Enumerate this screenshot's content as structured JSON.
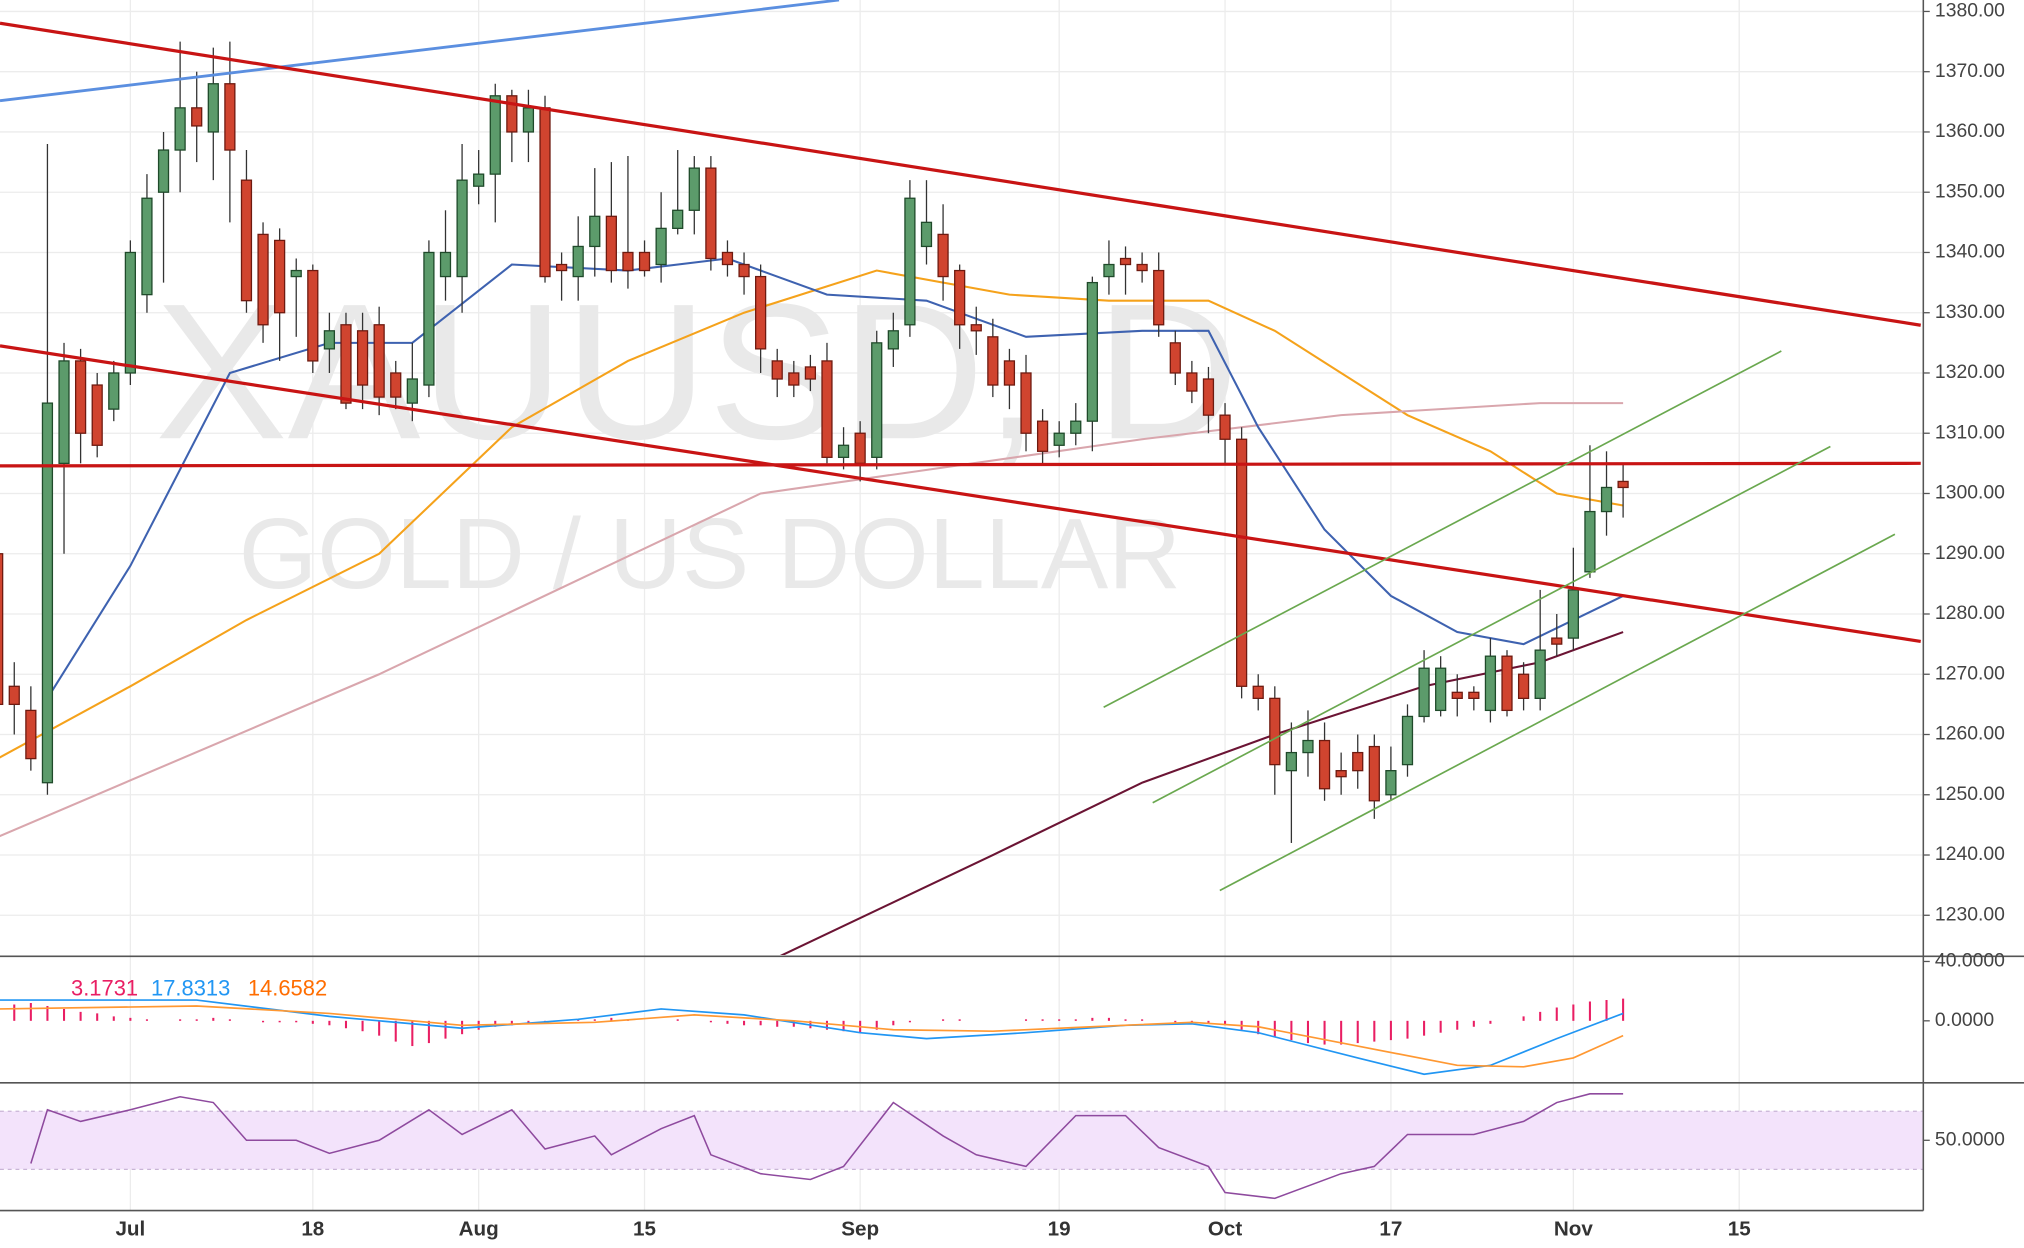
{
  "chart_data": [
    {
      "type": "candlestick",
      "title": "XAUUSD, D",
      "subtitle": "GOLD / US DOLLAR",
      "up_color": "#5c9b6b",
      "down_color": "#d0442f",
      "open": [
        1290,
        1268,
        1264,
        1252,
        1305,
        1322,
        1318,
        1314,
        1320,
        1333,
        1350,
        1357,
        1364,
        1360,
        1368,
        1352,
        1343,
        1342,
        1336,
        1337,
        1324,
        1328,
        1327,
        1328,
        1320,
        1315,
        1318,
        1336,
        1336,
        1351,
        1353,
        1366,
        1360,
        1364,
        1338,
        1336,
        1341,
        1346,
        1340,
        1340,
        1338,
        1344,
        1347,
        1354,
        1340,
        1338,
        1336,
        1322,
        1320,
        1321,
        1322,
        1306,
        1310,
        1306,
        1324,
        1328,
        1341,
        1343,
        1337,
        1328,
        1326,
        1322,
        1320,
        1312,
        1308,
        1310,
        1312,
        1336,
        1339,
        1338,
        1337,
        1325,
        1320,
        1319,
        1313,
        1309,
        1268,
        1266,
        1254,
        1257,
        1259,
        1254,
        1257,
        1258,
        1250,
        1255,
        1263,
        1264,
        1267,
        1267,
        1264,
        1273,
        1270,
        1266,
        1276,
        1276,
        1287,
        1297,
        1302
      ],
      "high": [
        1292,
        1272,
        1268,
        1358,
        1325,
        1324,
        1320,
        1322,
        1342,
        1353,
        1360,
        1375,
        1370,
        1374,
        1375,
        1357,
        1345,
        1344,
        1339,
        1338,
        1330,
        1330,
        1330,
        1331,
        1322,
        1325,
        1342,
        1347,
        1358,
        1357,
        1368,
        1367,
        1367,
        1366,
        1340,
        1346,
        1354,
        1355,
        1356,
        1342,
        1350,
        1357,
        1356,
        1356,
        1342,
        1340,
        1338,
        1324,
        1322,
        1323,
        1325,
        1311,
        1312,
        1327,
        1330,
        1352,
        1352,
        1348,
        1338,
        1331,
        1329,
        1324,
        1323,
        1314,
        1312,
        1315,
        1336,
        1342,
        1341,
        1340,
        1340,
        1327,
        1322,
        1321,
        1315,
        1311,
        1270,
        1268,
        1262,
        1264,
        1262,
        1257,
        1260,
        1260,
        1258,
        1265,
        1274,
        1273,
        1270,
        1268,
        1276,
        1274,
        1272,
        1284,
        1280,
        1291,
        1308,
        1307,
        1305
      ],
      "low": [
        1262,
        1260,
        1254,
        1250,
        1290,
        1305,
        1306,
        1312,
        1318,
        1330,
        1335,
        1350,
        1355,
        1352,
        1345,
        1330,
        1325,
        1322,
        1326,
        1320,
        1320,
        1314,
        1314,
        1313,
        1314,
        1312,
        1316,
        1332,
        1330,
        1348,
        1345,
        1355,
        1355,
        1335,
        1332,
        1332,
        1336,
        1335,
        1334,
        1336,
        1335,
        1343,
        1343,
        1337,
        1336,
        1333,
        1320,
        1316,
        1316,
        1317,
        1305,
        1304,
        1302,
        1304,
        1321,
        1326,
        1338,
        1332,
        1324,
        1323,
        1316,
        1314,
        1307,
        1305,
        1306,
        1308,
        1307,
        1333,
        1333,
        1335,
        1326,
        1318,
        1315,
        1310,
        1305,
        1266,
        1264,
        1250,
        1242,
        1253,
        1249,
        1250,
        1251,
        1246,
        1249,
        1253,
        1262,
        1263,
        1263,
        1264,
        1262,
        1263,
        1264,
        1264,
        1273,
        1274,
        1286,
        1293,
        1296
      ],
      "close": [
        1265,
        1265,
        1256,
        1315,
        1322,
        1310,
        1308,
        1320,
        1340,
        1349,
        1357,
        1364,
        1361,
        1368,
        1357,
        1332,
        1328,
        1330,
        1337,
        1322,
        1327,
        1315,
        1318,
        1316,
        1316,
        1319,
        1340,
        1340,
        1352,
        1353,
        1366,
        1360,
        1364,
        1336,
        1337,
        1341,
        1346,
        1337,
        1337,
        1337,
        1344,
        1347,
        1354,
        1339,
        1338,
        1336,
        1324,
        1319,
        1318,
        1319,
        1306,
        1308,
        1305,
        1325,
        1327,
        1349,
        1345,
        1336,
        1328,
        1327,
        1318,
        1318,
        1310,
        1307,
        1310,
        1312,
        1335,
        1338,
        1338,
        1337,
        1328,
        1320,
        1317,
        1313,
        1309,
        1268,
        1266,
        1255,
        1257,
        1259,
        1251,
        1253,
        1254,
        1249,
        1254,
        1263,
        1271,
        1271,
        1266,
        1266,
        1273,
        1264,
        1266,
        1274,
        1275,
        1284,
        1297,
        1301,
        1301
      ],
      "overlays": [
        {
          "color": "#f5a21b",
          "x": [
            0,
            8,
            15,
            23,
            31,
            38,
            45,
            53,
            61,
            67,
            73,
            77,
            81,
            85,
            90,
            94,
            98
          ],
          "values": [
            1256,
            1268,
            1279,
            1290,
            1311,
            1322,
            1330,
            1337,
            1333,
            1332,
            1332,
            1327,
            1320,
            1313,
            1307,
            1300,
            1298
          ]
        },
        {
          "color": "#d9a6ad",
          "x": [
            0,
            23,
            46,
            69,
            81,
            93,
            98
          ],
          "values": [
            1243,
            1270,
            1300,
            1309,
            1313,
            1315,
            1315
          ]
        },
        {
          "color": "#3e62b0",
          "x": [
            3,
            8,
            14,
            20,
            25,
            31,
            38,
            44,
            50,
            56,
            62,
            69,
            73,
            76,
            80,
            84,
            88,
            92,
            98
          ],
          "values": [
            1266,
            1288,
            1320,
            1325,
            1325,
            1338,
            1337,
            1339,
            1333,
            1332,
            1326,
            1327,
            1327,
            1311,
            1294,
            1283,
            1277,
            1275,
            1283
          ]
        },
        {
          "color": "#6b1434",
          "x": [
            47,
            60,
            69,
            77,
            86,
            93,
            98
          ],
          "values": [
            1223,
            1240,
            1252,
            1260,
            1268,
            1272,
            1277
          ]
        }
      ],
      "xlim": [
        0.14,
        116.1
      ],
      "xticks": [
        {
          "value": 8,
          "label": "Jul"
        },
        {
          "value": 19,
          "label": "18"
        },
        {
          "value": 29,
          "label": "Aug"
        },
        {
          "value": 39,
          "label": "15"
        },
        {
          "value": 52,
          "label": "Sep"
        },
        {
          "value": 64,
          "label": "19"
        },
        {
          "value": 74,
          "label": "Oct"
        },
        {
          "value": 84,
          "label": "17"
        },
        {
          "value": 95,
          "label": "Nov"
        },
        {
          "value": 105,
          "label": "15"
        }
      ],
      "ylim": [
        1223.4,
        1381.9
      ],
      "yticks": [
        {
          "value": 1230,
          "label": "1230.00"
        },
        {
          "value": 1240,
          "label": "1240.00"
        },
        {
          "value": 1250,
          "label": "1250.00"
        },
        {
          "value": 1260,
          "label": "1260.00"
        },
        {
          "value": 1270,
          "label": "1270.00"
        },
        {
          "value": 1280,
          "label": "1280.00"
        },
        {
          "value": 1290,
          "label": "1290.00"
        },
        {
          "value": 1300,
          "label": "1300.00"
        },
        {
          "value": 1310,
          "label": "1310.00"
        },
        {
          "value": 1320,
          "label": "1320.00"
        },
        {
          "value": 1330,
          "label": "1330.00"
        },
        {
          "value": 1340,
          "label": "1340.00"
        },
        {
          "value": 1350,
          "label": "1350.00"
        },
        {
          "value": 1360,
          "label": "1360.00"
        },
        {
          "value": 1370,
          "label": "1370.00"
        },
        {
          "value": 1380,
          "label": "1380.00"
        }
      ],
      "grid": true
    },
    {
      "type": "macd",
      "readout": {
        "values": [
          3.1731,
          17.8313,
          14.6582
        ],
        "colors": [
          "#e91e63",
          "#2196f3",
          "#ff6d00"
        ]
      },
      "histogram": {
        "color": "#e91e63",
        "values": [
          10,
          11,
          12,
          10,
          8,
          6,
          5,
          3,
          2,
          1,
          0,
          1,
          1,
          2,
          1,
          0,
          -1,
          -1,
          -1,
          -2,
          -3,
          -5,
          -7,
          -10,
          -14,
          -17,
          -15,
          -12,
          -9,
          -6,
          -4,
          -3,
          -2,
          -1,
          0,
          1,
          1,
          2,
          1,
          0,
          0,
          1,
          0,
          -1,
          -2,
          -3,
          -3,
          -4,
          -4,
          -5,
          -6,
          -7,
          -8,
          -6,
          -3,
          -1,
          0,
          1,
          1,
          0,
          0,
          0,
          1,
          1,
          1,
          1,
          2,
          2,
          1,
          1,
          0,
          -1,
          -1,
          -2,
          -3,
          -6,
          -9,
          -11,
          -13,
          -15,
          -16,
          -16,
          -15,
          -14,
          -13,
          -12,
          -10,
          -8,
          -6,
          -4,
          -2,
          0,
          3,
          6,
          9,
          11,
          13,
          14,
          15
        ]
      },
      "series": [
        {
          "color": "#2196f3",
          "x": [
            0,
            12,
            20,
            28,
            35,
            40,
            45,
            52,
            56,
            62,
            68,
            72,
            76,
            82,
            86,
            90,
            94,
            98
          ],
          "values": [
            14,
            14,
            3,
            -5,
            1,
            8,
            4,
            -8,
            -12,
            -8,
            -3,
            -2,
            -8,
            -25,
            -36,
            -30,
            -12,
            5
          ]
        },
        {
          "color": "#ff9832",
          "x": [
            0,
            12,
            20,
            28,
            36,
            42,
            48,
            54,
            60,
            66,
            72,
            76,
            82,
            88,
            92,
            95,
            98
          ],
          "values": [
            8,
            10,
            5,
            -3,
            -1,
            4,
            0,
            -6,
            -7,
            -4,
            -1,
            -4,
            -17,
            -30,
            -31,
            -25,
            -10
          ]
        }
      ],
      "ylim": [
        -40.9,
        42.6
      ],
      "yticks": [
        {
          "value": 40,
          "label": "40.0000"
        },
        {
          "value": 0,
          "label": "0.0000"
        }
      ]
    },
    {
      "type": "rsi",
      "band": [
        30,
        70
      ],
      "band_color": "#f3e3fb",
      "series": [
        {
          "color": "#8e4a9e",
          "x": [
            2,
            3,
            5,
            8,
            11,
            13,
            15,
            18,
            20,
            23,
            26,
            28,
            31,
            33,
            36,
            37,
            40,
            42,
            43,
            46,
            49,
            51,
            54,
            57,
            59,
            62,
            65,
            68,
            70,
            73,
            74,
            77,
            81,
            83,
            85,
            89,
            92,
            94,
            96,
            98
          ],
          "values": [
            34,
            71,
            63,
            71,
            80,
            76,
            50,
            50,
            41,
            50,
            71,
            54,
            71,
            44,
            53,
            40,
            58,
            67,
            40,
            27,
            23,
            32,
            76,
            53,
            40,
            32,
            67,
            67,
            45,
            32,
            14,
            10,
            27,
            32,
            54,
            54,
            63,
            76,
            82,
            82
          ]
        }
      ],
      "ylim": [
        1.6,
        88.7
      ],
      "yticks": [
        {
          "value": 50,
          "label": "50.0000"
        }
      ]
    }
  ]
}
